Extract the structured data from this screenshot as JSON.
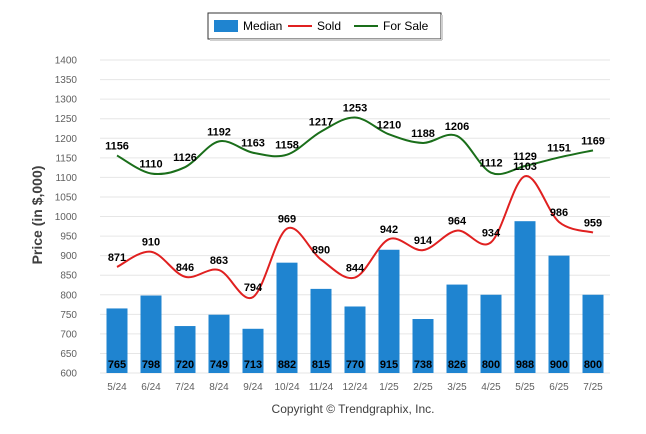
{
  "chart_data": {
    "type": "bar",
    "categories": [
      "5/24",
      "6/24",
      "7/24",
      "8/24",
      "9/24",
      "10/24",
      "11/24",
      "12/24",
      "1/25",
      "2/25",
      "3/25",
      "4/25",
      "5/25",
      "6/25",
      "7/25"
    ],
    "ylabel": "Price (in $,000)",
    "xlabel": "",
    "ylim": [
      600,
      1400
    ],
    "yticks": [
      600,
      650,
      700,
      750,
      800,
      850,
      900,
      950,
      1000,
      1050,
      1100,
      1150,
      1200,
      1250,
      1300,
      1350,
      1400
    ],
    "grid": true,
    "legend_position": "top-center",
    "series": [
      {
        "name": "Median",
        "type": "bar",
        "color": "#1f84d0",
        "values": [
          765,
          798,
          720,
          749,
          713,
          882,
          815,
          770,
          915,
          738,
          826,
          800,
          988,
          900,
          800
        ]
      },
      {
        "name": "Sold",
        "type": "line",
        "color": "#e02020",
        "values": [
          871,
          910,
          846,
          863,
          794,
          969,
          890,
          844,
          942,
          914,
          964,
          934,
          1103,
          986,
          959
        ]
      },
      {
        "name": "For Sale",
        "type": "line",
        "color": "#1a6e1a",
        "values": [
          1156,
          1110,
          1126,
          1192,
          1163,
          1158,
          1217,
          1253,
          1210,
          1188,
          1206,
          1112,
          1129,
          1151,
          1169
        ]
      }
    ]
  },
  "copyright": "Copyright © Trendgraphix, Inc."
}
